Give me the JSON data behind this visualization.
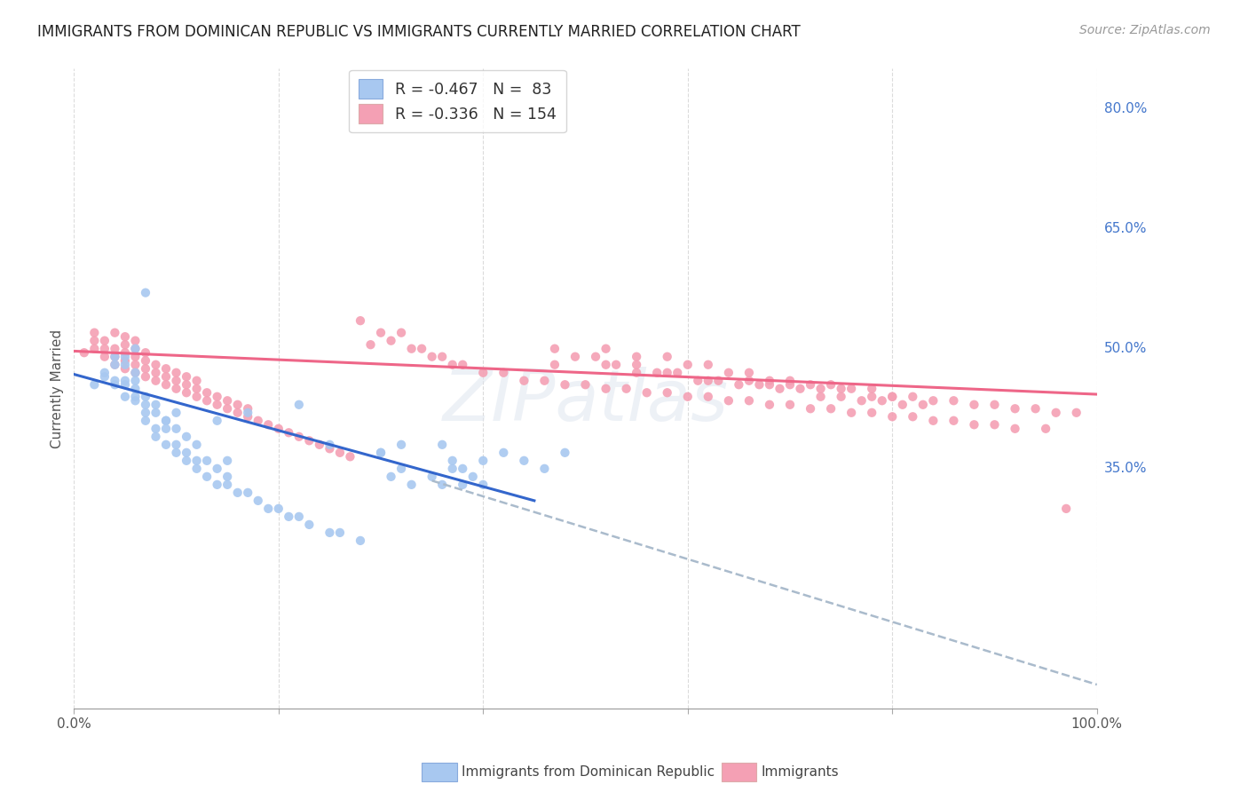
{
  "title": "IMMIGRANTS FROM DOMINICAN REPUBLIC VS IMMIGRANTS CURRENTLY MARRIED CORRELATION CHART",
  "source": "Source: ZipAtlas.com",
  "ylabel": "Currently Married",
  "ytick_labels": [
    "80.0%",
    "65.0%",
    "50.0%",
    "35.0%"
  ],
  "ytick_values": [
    0.8,
    0.65,
    0.5,
    0.35
  ],
  "legend1_r": "R = -0.467",
  "legend1_n": "N =  83",
  "legend2_r": "R = -0.336",
  "legend2_n": "N = 154",
  "blue_color": "#a8c8f0",
  "pink_color": "#f4a0b4",
  "blue_line_color": "#3366cc",
  "pink_line_color": "#ee6688",
  "dashed_line_color": "#aabbcc",
  "background_color": "#ffffff",
  "grid_color": "#cccccc",
  "blue_scatter_x": [
    0.02,
    0.03,
    0.03,
    0.04,
    0.04,
    0.04,
    0.04,
    0.05,
    0.05,
    0.05,
    0.05,
    0.06,
    0.06,
    0.06,
    0.06,
    0.06,
    0.07,
    0.07,
    0.07,
    0.07,
    0.08,
    0.08,
    0.08,
    0.08,
    0.09,
    0.09,
    0.09,
    0.1,
    0.1,
    0.1,
    0.1,
    0.11,
    0.11,
    0.11,
    0.12,
    0.12,
    0.12,
    0.13,
    0.13,
    0.14,
    0.14,
    0.15,
    0.15,
    0.15,
    0.16,
    0.17,
    0.18,
    0.19,
    0.2,
    0.21,
    0.22,
    0.23,
    0.25,
    0.26,
    0.28,
    0.3,
    0.31,
    0.32,
    0.33,
    0.35,
    0.36,
    0.37,
    0.37,
    0.38,
    0.39,
    0.4,
    0.07,
    0.05,
    0.06,
    0.09,
    0.14,
    0.17,
    0.22,
    0.25,
    0.3,
    0.32,
    0.36,
    0.38,
    0.4,
    0.42,
    0.44,
    0.46,
    0.48
  ],
  "blue_scatter_y": [
    0.455,
    0.465,
    0.47,
    0.46,
    0.455,
    0.48,
    0.49,
    0.44,
    0.455,
    0.46,
    0.48,
    0.435,
    0.44,
    0.45,
    0.46,
    0.47,
    0.41,
    0.42,
    0.43,
    0.44,
    0.39,
    0.4,
    0.42,
    0.43,
    0.38,
    0.4,
    0.41,
    0.37,
    0.38,
    0.4,
    0.42,
    0.36,
    0.37,
    0.39,
    0.35,
    0.36,
    0.38,
    0.34,
    0.36,
    0.33,
    0.35,
    0.33,
    0.34,
    0.36,
    0.32,
    0.32,
    0.31,
    0.3,
    0.3,
    0.29,
    0.29,
    0.28,
    0.27,
    0.27,
    0.26,
    0.37,
    0.34,
    0.35,
    0.33,
    0.34,
    0.33,
    0.35,
    0.36,
    0.33,
    0.34,
    0.33,
    0.57,
    0.49,
    0.5,
    0.41,
    0.41,
    0.42,
    0.43,
    0.38,
    0.37,
    0.38,
    0.38,
    0.35,
    0.36,
    0.37,
    0.36,
    0.35,
    0.37
  ],
  "pink_scatter_x": [
    0.01,
    0.02,
    0.02,
    0.02,
    0.03,
    0.03,
    0.03,
    0.04,
    0.04,
    0.04,
    0.04,
    0.05,
    0.05,
    0.05,
    0.05,
    0.05,
    0.06,
    0.06,
    0.06,
    0.06,
    0.06,
    0.07,
    0.07,
    0.07,
    0.07,
    0.08,
    0.08,
    0.08,
    0.09,
    0.09,
    0.09,
    0.1,
    0.1,
    0.1,
    0.11,
    0.11,
    0.11,
    0.12,
    0.12,
    0.12,
    0.13,
    0.13,
    0.14,
    0.14,
    0.15,
    0.15,
    0.16,
    0.16,
    0.17,
    0.17,
    0.18,
    0.19,
    0.2,
    0.21,
    0.22,
    0.23,
    0.24,
    0.25,
    0.26,
    0.27,
    0.28,
    0.29,
    0.3,
    0.31,
    0.32,
    0.33,
    0.34,
    0.35,
    0.36,
    0.37,
    0.38,
    0.4,
    0.42,
    0.44,
    0.46,
    0.48,
    0.5,
    0.52,
    0.54,
    0.56,
    0.58,
    0.6,
    0.62,
    0.64,
    0.66,
    0.68,
    0.7,
    0.72,
    0.74,
    0.76,
    0.78,
    0.8,
    0.82,
    0.84,
    0.86,
    0.88,
    0.9,
    0.92,
    0.95,
    0.47,
    0.52,
    0.55,
    0.58,
    0.62,
    0.66,
    0.68,
    0.7,
    0.73,
    0.75,
    0.78,
    0.8,
    0.52,
    0.55,
    0.58,
    0.6,
    0.62,
    0.64,
    0.66,
    0.68,
    0.7,
    0.72,
    0.74,
    0.76,
    0.78,
    0.8,
    0.82,
    0.84,
    0.86,
    0.88,
    0.9,
    0.92,
    0.94,
    0.96,
    0.98,
    0.47,
    0.49,
    0.51,
    0.53,
    0.55,
    0.57,
    0.59,
    0.61,
    0.63,
    0.65,
    0.67,
    0.69,
    0.71,
    0.73,
    0.75,
    0.77,
    0.79,
    0.81,
    0.83,
    0.97
  ],
  "pink_scatter_y": [
    0.495,
    0.5,
    0.51,
    0.52,
    0.49,
    0.5,
    0.51,
    0.48,
    0.49,
    0.5,
    0.52,
    0.475,
    0.485,
    0.495,
    0.505,
    0.515,
    0.47,
    0.48,
    0.49,
    0.5,
    0.51,
    0.465,
    0.475,
    0.485,
    0.495,
    0.46,
    0.47,
    0.48,
    0.455,
    0.465,
    0.475,
    0.45,
    0.46,
    0.47,
    0.445,
    0.455,
    0.465,
    0.44,
    0.45,
    0.46,
    0.435,
    0.445,
    0.43,
    0.44,
    0.425,
    0.435,
    0.42,
    0.43,
    0.415,
    0.425,
    0.41,
    0.405,
    0.4,
    0.395,
    0.39,
    0.385,
    0.38,
    0.375,
    0.37,
    0.365,
    0.535,
    0.505,
    0.52,
    0.51,
    0.52,
    0.5,
    0.5,
    0.49,
    0.49,
    0.48,
    0.48,
    0.47,
    0.47,
    0.46,
    0.46,
    0.455,
    0.455,
    0.45,
    0.45,
    0.445,
    0.445,
    0.44,
    0.44,
    0.435,
    0.435,
    0.43,
    0.43,
    0.425,
    0.425,
    0.42,
    0.42,
    0.415,
    0.415,
    0.41,
    0.41,
    0.405,
    0.405,
    0.4,
    0.4,
    0.48,
    0.48,
    0.47,
    0.47,
    0.46,
    0.46,
    0.455,
    0.455,
    0.45,
    0.45,
    0.44,
    0.44,
    0.5,
    0.49,
    0.49,
    0.48,
    0.48,
    0.47,
    0.47,
    0.46,
    0.46,
    0.455,
    0.455,
    0.45,
    0.45,
    0.44,
    0.44,
    0.435,
    0.435,
    0.43,
    0.43,
    0.425,
    0.425,
    0.42,
    0.42,
    0.5,
    0.49,
    0.49,
    0.48,
    0.48,
    0.47,
    0.47,
    0.46,
    0.46,
    0.455,
    0.455,
    0.45,
    0.45,
    0.44,
    0.44,
    0.435,
    0.435,
    0.43,
    0.43,
    0.3
  ],
  "blue_line_x": [
    0.0,
    0.45
  ],
  "blue_line_y": [
    0.468,
    0.31
  ],
  "pink_line_x": [
    0.0,
    1.0
  ],
  "pink_line_y": [
    0.497,
    0.443
  ],
  "dashed_line_x": [
    0.35,
    1.0
  ],
  "dashed_line_y": [
    0.335,
    0.08
  ],
  "xlim": [
    0.0,
    1.0
  ],
  "ylim": [
    0.05,
    0.85
  ]
}
